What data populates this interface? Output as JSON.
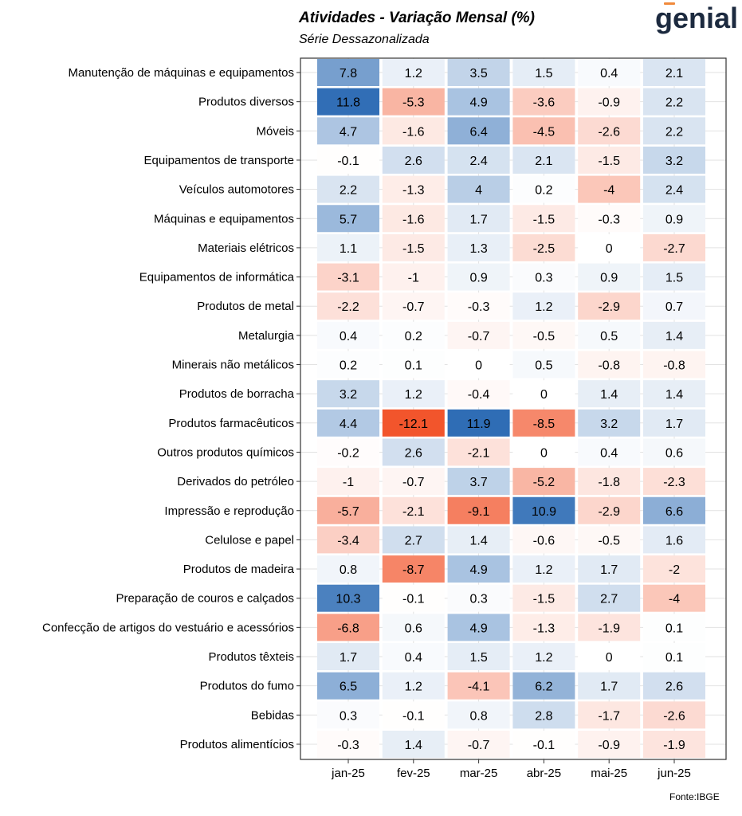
{
  "title": "Atividades - Variação Mensal (%)",
  "subtitle": "Série Dessazonalizada",
  "logo": "genial",
  "source": "Fonte:IBGE",
  "colors": {
    "positive": "#2f6db5",
    "negative": "#f2552c",
    "neutral": "#ffffff",
    "grid": "#e2e2e2",
    "border": "#333333"
  },
  "chart_data": {
    "type": "heatmap",
    "x_categories": [
      "jan-25",
      "fev-25",
      "mar-25",
      "abr-25",
      "mai-25",
      "jun-25"
    ],
    "y_categories": [
      "Manutenção de máquinas e equipamentos",
      "Produtos diversos",
      "Móveis",
      "Equipamentos de transporte",
      "Veículos automotores",
      "Máquinas e equipamentos",
      "Materiais elétricos",
      "Equipamentos de informática",
      "Produtos de metal",
      "Metalurgia",
      "Minerais não metálicos",
      "Produtos de borracha",
      "Produtos farmacêuticos",
      "Outros produtos químicos",
      "Derivados do petróleo",
      "Impressão e reprodução",
      "Celulose e papel",
      "Produtos de madeira",
      "Preparação de couros e calçados",
      "Confecção de artigos do vestuário e acessórios",
      "Produtos têxteis",
      "Produtos do fumo",
      "Bebidas",
      "Produtos alimentícios"
    ],
    "values": [
      [
        "7.8",
        "1.2",
        "3.5",
        "1.5",
        "0.4",
        "2.1"
      ],
      [
        "11.8",
        "-5.3",
        "4.9",
        "-3.6",
        "-0.9",
        "2.2"
      ],
      [
        "4.7",
        "-1.6",
        "6.4",
        "-4.5",
        "-2.6",
        "2.2"
      ],
      [
        "-0.1",
        "2.6",
        "2.4",
        "2.1",
        "-1.5",
        "3.2"
      ],
      [
        "2.2",
        "-1.3",
        "4",
        "0.2",
        "-4",
        "2.4"
      ],
      [
        "5.7",
        "-1.6",
        "1.7",
        "-1.5",
        "-0.3",
        "0.9"
      ],
      [
        "1.1",
        "-1.5",
        "1.3",
        "-2.5",
        "0",
        "-2.7"
      ],
      [
        "-3.1",
        "-1",
        "0.9",
        "0.3",
        "0.9",
        "1.5"
      ],
      [
        "-2.2",
        "-0.7",
        "-0.3",
        "1.2",
        "-2.9",
        "0.7"
      ],
      [
        "0.4",
        "0.2",
        "-0.7",
        "-0.5",
        "0.5",
        "1.4"
      ],
      [
        "0.2",
        "0.1",
        "0",
        "0.5",
        "-0.8",
        "-0.8"
      ],
      [
        "3.2",
        "1.2",
        "-0.4",
        "0",
        "1.4",
        "1.4"
      ],
      [
        "4.4",
        "-12.1",
        "11.9",
        "-8.5",
        "3.2",
        "1.7"
      ],
      [
        "-0.2",
        "2.6",
        "-2.1",
        "0",
        "0.4",
        "0.6"
      ],
      [
        "-1",
        "-0.7",
        "3.7",
        "-5.2",
        "-1.8",
        "-2.3"
      ],
      [
        "-5.7",
        "-2.1",
        "-9.1",
        "10.9",
        "-2.9",
        "6.6"
      ],
      [
        "-3.4",
        "2.7",
        "1.4",
        "-0.6",
        "-0.5",
        "1.6"
      ],
      [
        "0.8",
        "-8.7",
        "4.9",
        "1.2",
        "1.7",
        "-2"
      ],
      [
        "10.3",
        "-0.1",
        "0.3",
        "-1.5",
        "2.7",
        "-4"
      ],
      [
        "-6.8",
        "0.6",
        "4.9",
        "-1.3",
        "-1.9",
        "0.1"
      ],
      [
        "1.7",
        "0.4",
        "1.5",
        "1.2",
        "0",
        "0.1"
      ],
      [
        "6.5",
        "1.2",
        "-4.1",
        "6.2",
        "1.7",
        "2.6"
      ],
      [
        "0.3",
        "-0.1",
        "0.8",
        "2.8",
        "-1.7",
        "-2.6"
      ],
      [
        "-0.3",
        "1.4",
        "-0.7",
        "-0.1",
        "-0.9",
        "-1.9"
      ]
    ],
    "color_scale": {
      "min": -12.1,
      "mid": 0,
      "max": 11.9
    },
    "grid": true,
    "legend": "none"
  }
}
